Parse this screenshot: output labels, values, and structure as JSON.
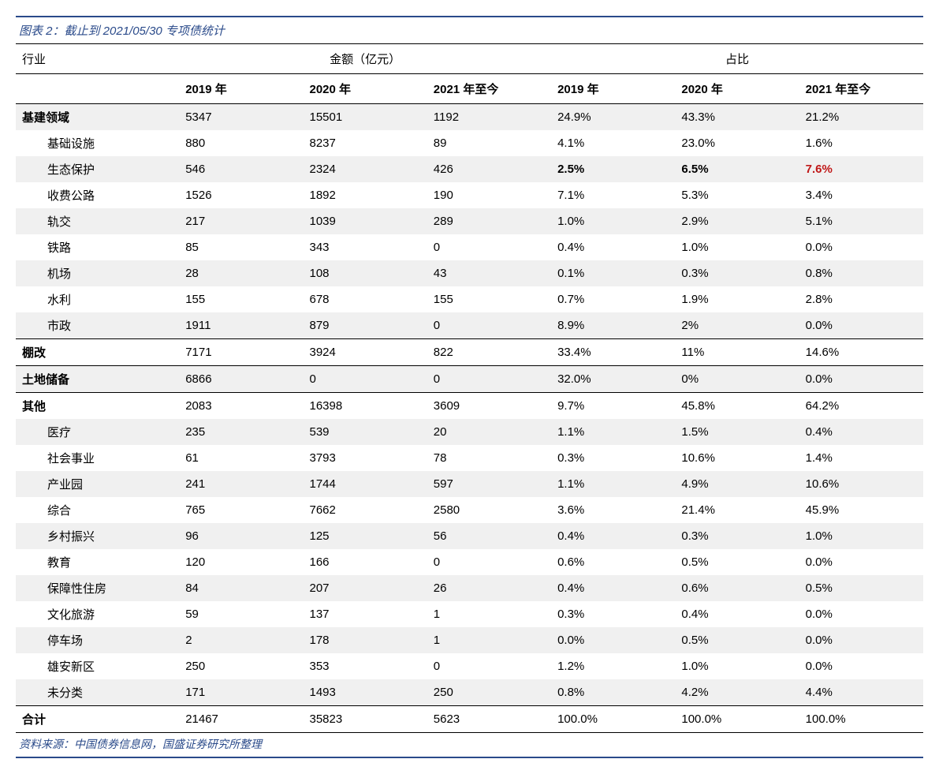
{
  "caption": "图表 2：截止到 2021/05/30 专项债统计",
  "source": "资料来源：中国债券信息网，国盛证券研究所整理",
  "colors": {
    "accent": "#2a4a8a",
    "alt_row": "#f0f0f0",
    "text": "#000000",
    "highlight_red": "#c01818",
    "background": "#ffffff"
  },
  "header": {
    "industry": "行业",
    "amount_group": "金额（亿元）",
    "ratio_group": "占比",
    "years": [
      "2019 年",
      "2020 年",
      "2021 年至今",
      "2019 年",
      "2020 年",
      "2021 年至今"
    ]
  },
  "rows": [
    {
      "name": "基建领域",
      "level": "cat",
      "alt": true,
      "v": [
        "5347",
        "15501",
        "1192",
        "24.9%",
        "43.3%",
        "21.2%"
      ]
    },
    {
      "name": "基础设施",
      "level": "sub",
      "alt": false,
      "v": [
        "880",
        "8237",
        "89",
        "4.1%",
        "23.0%",
        "1.6%"
      ]
    },
    {
      "name": "生态保护",
      "level": "sub",
      "alt": true,
      "v": [
        "546",
        "2324",
        "426",
        "2.5%",
        "6.5%",
        "7.6%"
      ],
      "bold_cols": [
        3,
        4
      ],
      "red_cols": [
        5
      ]
    },
    {
      "name": "收费公路",
      "level": "sub",
      "alt": false,
      "v": [
        "1526",
        "1892",
        "190",
        "7.1%",
        "5.3%",
        "3.4%"
      ]
    },
    {
      "name": "轨交",
      "level": "sub",
      "alt": true,
      "v": [
        "217",
        "1039",
        "289",
        "1.0%",
        "2.9%",
        "5.1%"
      ]
    },
    {
      "name": "铁路",
      "level": "sub",
      "alt": false,
      "v": [
        "85",
        "343",
        "0",
        "0.4%",
        "1.0%",
        "0.0%"
      ]
    },
    {
      "name": "机场",
      "level": "sub",
      "alt": true,
      "v": [
        "28",
        "108",
        "43",
        "0.1%",
        "0.3%",
        "0.8%"
      ]
    },
    {
      "name": "水利",
      "level": "sub",
      "alt": false,
      "v": [
        "155",
        "678",
        "155",
        "0.7%",
        "1.9%",
        "2.8%"
      ]
    },
    {
      "name": "市政",
      "level": "sub",
      "alt": true,
      "v": [
        "1911",
        "879",
        "0",
        "8.9%",
        "2%",
        "0.0%"
      ]
    },
    {
      "name": "棚改",
      "level": "cat",
      "alt": false,
      "sep": true,
      "v": [
        "7171",
        "3924",
        "822",
        "33.4%",
        "11%",
        "14.6%"
      ]
    },
    {
      "name": "土地储备",
      "level": "cat",
      "alt": true,
      "sep": true,
      "v": [
        "6866",
        "0",
        "0",
        "32.0%",
        "0%",
        "0.0%"
      ]
    },
    {
      "name": "其他",
      "level": "cat",
      "alt": false,
      "sep": true,
      "v": [
        "2083",
        "16398",
        "3609",
        "9.7%",
        "45.8%",
        "64.2%"
      ]
    },
    {
      "name": "医疗",
      "level": "sub",
      "alt": true,
      "v": [
        "235",
        "539",
        "20",
        "1.1%",
        "1.5%",
        "0.4%"
      ]
    },
    {
      "name": "社会事业",
      "level": "sub",
      "alt": false,
      "v": [
        "61",
        "3793",
        "78",
        "0.3%",
        "10.6%",
        "1.4%"
      ]
    },
    {
      "name": "产业园",
      "level": "sub",
      "alt": true,
      "v": [
        "241",
        "1744",
        "597",
        "1.1%",
        "4.9%",
        "10.6%"
      ]
    },
    {
      "name": "综合",
      "level": "sub",
      "alt": false,
      "v": [
        "765",
        "7662",
        "2580",
        "3.6%",
        "21.4%",
        "45.9%"
      ]
    },
    {
      "name": "乡村振兴",
      "level": "sub",
      "alt": true,
      "v": [
        "96",
        "125",
        "56",
        "0.4%",
        "0.3%",
        "1.0%"
      ]
    },
    {
      "name": "教育",
      "level": "sub",
      "alt": false,
      "v": [
        "120",
        "166",
        "0",
        "0.6%",
        "0.5%",
        "0.0%"
      ]
    },
    {
      "name": "保障性住房",
      "level": "sub",
      "alt": true,
      "v": [
        "84",
        "207",
        "26",
        "0.4%",
        "0.6%",
        "0.5%"
      ]
    },
    {
      "name": "文化旅游",
      "level": "sub",
      "alt": false,
      "v": [
        "59",
        "137",
        "1",
        "0.3%",
        "0.4%",
        "0.0%"
      ]
    },
    {
      "name": "停车场",
      "level": "sub",
      "alt": true,
      "v": [
        "2",
        "178",
        "1",
        "0.0%",
        "0.5%",
        "0.0%"
      ]
    },
    {
      "name": "雄安新区",
      "level": "sub",
      "alt": false,
      "v": [
        "250",
        "353",
        "0",
        "1.2%",
        "1.0%",
        "0.0%"
      ]
    },
    {
      "name": "未分类",
      "level": "sub",
      "alt": true,
      "v": [
        "171",
        "1493",
        "250",
        "0.8%",
        "4.2%",
        "4.4%"
      ]
    }
  ],
  "total": {
    "name": "合计",
    "v": [
      "21467",
      "35823",
      "5623",
      "100.0%",
      "100.0%",
      "100.0%"
    ]
  }
}
